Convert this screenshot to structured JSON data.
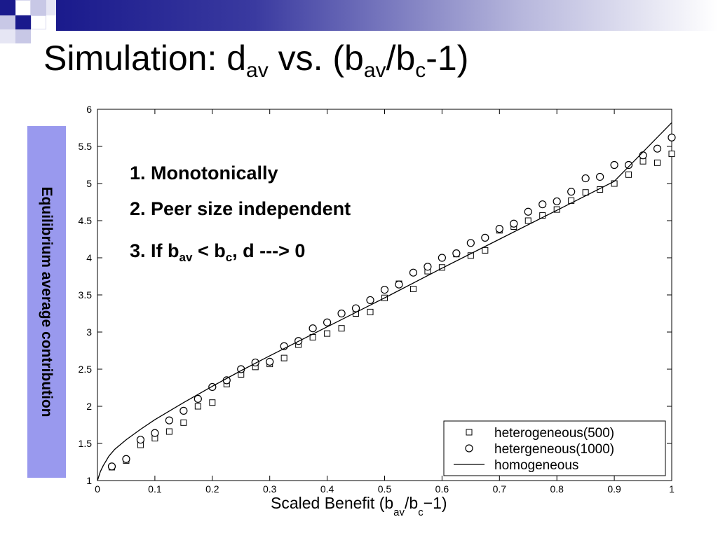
{
  "slide": {
    "title_main": "Simulation: d",
    "title_sub1": "av",
    "title_mid": " vs. (b",
    "title_sub2": "av",
    "title_mid2": "/b",
    "title_sub3": "c",
    "title_end": "-1)"
  },
  "notes": {
    "item1": "1. Monotonically",
    "item2": "2. Peer size independent",
    "item3_a": "3. If b",
    "item3_sub1": "av",
    "item3_b": " < b",
    "item3_sub2": "c",
    "item3_c": ", d ---> 0"
  },
  "colors": {
    "title_band": "#1a1a8c",
    "ylabel_box": "#9999ee"
  },
  "chart_data": {
    "type": "scatter",
    "ylabel": "Equilibrium average contribution",
    "xlabel_parts": [
      "Scaled Benefit (b",
      "av",
      "/b",
      "c",
      "−1)"
    ],
    "xlim": [
      0,
      1
    ],
    "ylim": [
      1,
      6
    ],
    "x_ticks": [
      "0",
      "0.1",
      "0.2",
      "0.3",
      "0.4",
      "0.5",
      "0.6",
      "0.7",
      "0.8",
      "0.9",
      "1"
    ],
    "y_ticks": [
      "1",
      "1.5",
      "2",
      "2.5",
      "3",
      "3.5",
      "4",
      "4.5",
      "5",
      "5.5",
      "6"
    ],
    "legend_position": "bottom-right",
    "grid": false,
    "series": [
      {
        "name": "heterogeneous(500)",
        "marker": "square",
        "x": [
          0.025,
          0.05,
          0.075,
          0.1,
          0.125,
          0.15,
          0.175,
          0.2,
          0.225,
          0.25,
          0.275,
          0.3,
          0.325,
          0.35,
          0.375,
          0.4,
          0.425,
          0.45,
          0.475,
          0.5,
          0.525,
          0.55,
          0.575,
          0.6,
          0.625,
          0.65,
          0.675,
          0.7,
          0.725,
          0.75,
          0.775,
          0.8,
          0.825,
          0.85,
          0.875,
          0.9,
          0.925,
          0.95,
          0.975,
          1.0
        ],
        "y": [
          1.18,
          1.27,
          1.48,
          1.57,
          1.66,
          1.78,
          2.0,
          2.05,
          2.3,
          2.43,
          2.53,
          2.57,
          2.65,
          2.83,
          2.93,
          2.98,
          3.05,
          3.25,
          3.27,
          3.46,
          3.65,
          3.58,
          3.82,
          3.87,
          4.05,
          4.03,
          4.1,
          4.37,
          4.42,
          4.5,
          4.57,
          4.65,
          4.77,
          4.88,
          4.92,
          5.0,
          5.12,
          5.3,
          5.28,
          5.4
        ]
      },
      {
        "name": "hetergeneous(1000)",
        "marker": "circle",
        "x": [
          0.025,
          0.05,
          0.075,
          0.1,
          0.125,
          0.15,
          0.175,
          0.2,
          0.225,
          0.25,
          0.275,
          0.3,
          0.325,
          0.35,
          0.375,
          0.4,
          0.425,
          0.45,
          0.475,
          0.5,
          0.525,
          0.55,
          0.575,
          0.6,
          0.625,
          0.65,
          0.675,
          0.7,
          0.725,
          0.75,
          0.775,
          0.8,
          0.825,
          0.85,
          0.875,
          0.9,
          0.925,
          0.95,
          0.975,
          1.0
        ],
        "y": [
          1.19,
          1.29,
          1.55,
          1.64,
          1.81,
          1.94,
          2.1,
          2.26,
          2.35,
          2.5,
          2.59,
          2.6,
          2.81,
          2.88,
          3.05,
          3.13,
          3.25,
          3.32,
          3.43,
          3.57,
          3.64,
          3.8,
          3.88,
          4.0,
          4.06,
          4.2,
          4.27,
          4.39,
          4.46,
          4.62,
          4.72,
          4.76,
          4.89,
          5.07,
          5.09,
          5.25,
          5.25,
          5.38,
          5.47,
          5.62
        ]
      },
      {
        "name": "homogeneous",
        "marker": "line",
        "x": [
          0,
          0.005,
          0.01,
          0.02,
          0.03,
          0.05,
          0.075,
          0.1,
          0.15,
          0.2,
          0.25,
          0.3,
          0.4,
          0.5,
          0.6,
          0.7,
          0.8,
          0.9,
          1.0
        ],
        "y": [
          1.0,
          1.12,
          1.2,
          1.33,
          1.42,
          1.55,
          1.69,
          1.82,
          2.05,
          2.27,
          2.48,
          2.68,
          3.07,
          3.46,
          3.86,
          4.25,
          4.64,
          5.03,
          5.82
        ]
      }
    ]
  }
}
